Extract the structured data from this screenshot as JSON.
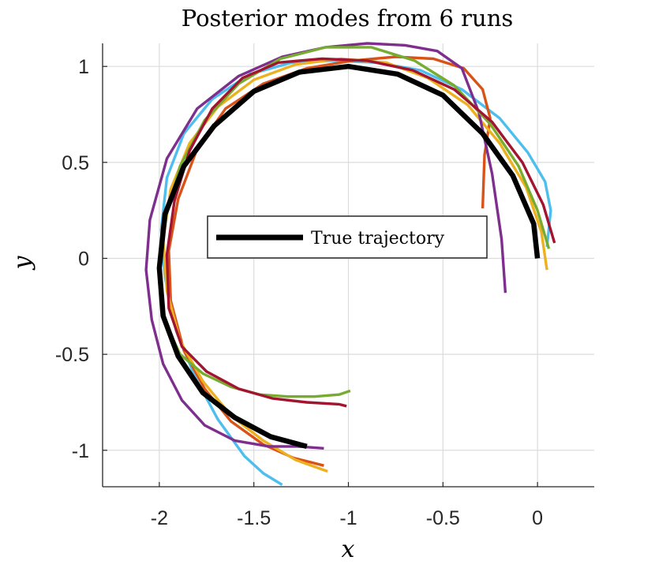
{
  "chart_data": {
    "type": "line",
    "title": "Posterior modes from 6 runs",
    "xlabel": "x",
    "ylabel": "y",
    "xlim": [
      -2.3,
      0.3
    ],
    "ylim": [
      -1.19,
      1.12
    ],
    "xticks": [
      -2,
      -1.5,
      -1,
      -0.5,
      0
    ],
    "xtick_labels": [
      "-2",
      "-1.5",
      "-1",
      "-0.5",
      "0"
    ],
    "yticks": [
      -1,
      -0.5,
      0,
      0.5,
      1
    ],
    "ytick_labels": [
      "-1",
      "-0.5",
      "0",
      "0.5",
      "1"
    ],
    "grid": true,
    "box": true,
    "legend": {
      "entries": [
        "True trajectory"
      ],
      "placement": "center"
    },
    "series": [
      {
        "name": "True trajectory",
        "color": "#000000",
        "emphasis": true,
        "x": [
          0,
          -0.02,
          -0.13,
          -0.29,
          -0.5,
          -0.74,
          -1.0,
          -1.26,
          -1.5,
          -1.71,
          -1.87,
          -1.97,
          -2.0,
          -1.98,
          -1.9,
          -1.77,
          -1.6,
          -1.41,
          -1.22
        ],
        "y": [
          0,
          0.18,
          0.43,
          0.65,
          0.85,
          0.96,
          1.0,
          0.97,
          0.87,
          0.69,
          0.48,
          0.23,
          -0.05,
          -0.3,
          -0.51,
          -0.7,
          -0.83,
          -0.93,
          -0.98
        ]
      },
      {
        "color": "#4DBEEE",
        "x": [
          0.05,
          0.07,
          0.04,
          -0.05,
          -0.2,
          -0.4,
          -0.62,
          -0.85,
          -1.08,
          -1.3,
          -1.52,
          -1.72,
          -1.87,
          -1.96,
          -1.99,
          -1.97,
          -1.91,
          -1.81,
          -1.69,
          -1.55,
          -1.45,
          -1.35
        ],
        "y": [
          0.06,
          0.25,
          0.4,
          0.55,
          0.73,
          0.88,
          0.98,
          1.02,
          1.03,
          1.02,
          0.96,
          0.83,
          0.65,
          0.42,
          0.15,
          -0.1,
          -0.38,
          -0.62,
          -0.84,
          -1.03,
          -1.12,
          -1.18
        ]
      },
      {
        "color": "#D95319",
        "x": [
          -0.29,
          -0.28,
          -0.25,
          -0.29,
          -0.39,
          -0.55,
          -0.75,
          -0.98,
          -1.22,
          -1.45,
          -1.65,
          -1.8,
          -1.9,
          -1.95,
          -1.94,
          -1.87,
          -1.76,
          -1.62,
          -1.45,
          -1.29,
          -1.13
        ],
        "y": [
          0.26,
          0.54,
          0.73,
          0.88,
          0.99,
          1.04,
          1.05,
          1.03,
          0.99,
          0.91,
          0.78,
          0.57,
          0.31,
          0.04,
          -0.22,
          -0.48,
          -0.68,
          -0.85,
          -0.97,
          -1.04,
          -1.08
        ]
      },
      {
        "color": "#EDB120",
        "x": [
          0.05,
          0.02,
          -0.06,
          -0.2,
          -0.37,
          -0.58,
          -0.8,
          -1.04,
          -1.28,
          -1.5,
          -1.69,
          -1.84,
          -1.94,
          -1.98,
          -1.96,
          -1.89,
          -1.77,
          -1.62,
          -1.45,
          -1.28,
          -1.11
        ],
        "y": [
          -0.06,
          0.14,
          0.37,
          0.6,
          0.8,
          0.94,
          1.02,
          1.04,
          1.01,
          0.93,
          0.79,
          0.6,
          0.36,
          0.1,
          -0.17,
          -0.43,
          -0.64,
          -0.82,
          -0.95,
          -1.05,
          -1.11
        ]
      },
      {
        "color": "#7E2F8E",
        "x": [
          -0.17,
          -0.19,
          -0.24,
          -0.31,
          -0.4,
          -0.53,
          -0.7,
          -0.9,
          -1.12,
          -1.35,
          -1.58,
          -1.8,
          -1.96,
          -2.05,
          -2.07,
          -2.04,
          -1.98,
          -1.88,
          -1.76,
          -1.6,
          -1.42,
          -1.27,
          -1.13
        ],
        "y": [
          -0.18,
          0.1,
          0.44,
          0.76,
          0.99,
          1.08,
          1.11,
          1.12,
          1.1,
          1.05,
          0.95,
          0.78,
          0.52,
          0.2,
          -0.06,
          -0.32,
          -0.55,
          -0.74,
          -0.87,
          -0.95,
          -0.98,
          -0.98,
          -0.99
        ]
      },
      {
        "color": "#77AC30",
        "x": [
          0.06,
          0.0,
          -0.1,
          -0.25,
          -0.44,
          -0.65,
          -0.88,
          -1.12,
          -1.36,
          -1.58,
          -1.76,
          -1.89,
          -1.97,
          -2.0,
          -1.97,
          -1.89,
          -1.77,
          -1.62,
          -1.47,
          -1.32,
          -1.18,
          -1.05,
          -0.99
        ],
        "y": [
          0.05,
          0.25,
          0.48,
          0.7,
          0.9,
          1.03,
          1.1,
          1.1,
          1.04,
          0.91,
          0.72,
          0.48,
          0.2,
          -0.08,
          -0.33,
          -0.5,
          -0.6,
          -0.67,
          -0.71,
          -0.72,
          -0.72,
          -0.71,
          -0.69
        ]
      },
      {
        "color": "#A2142F",
        "x": [
          0.09,
          0.03,
          -0.08,
          -0.24,
          -0.44,
          -0.66,
          -0.9,
          -1.14,
          -1.37,
          -1.56,
          -1.72,
          -1.84,
          -1.92,
          -1.96,
          -1.95,
          -1.88,
          -1.75,
          -1.58,
          -1.4,
          -1.22,
          -1.05,
          -1.01
        ],
        "y": [
          0.08,
          0.28,
          0.5,
          0.71,
          0.88,
          0.98,
          1.03,
          1.04,
          1.02,
          0.94,
          0.78,
          0.56,
          0.3,
          0.02,
          -0.26,
          -0.46,
          -0.59,
          -0.68,
          -0.73,
          -0.75,
          -0.76,
          -0.77
        ]
      }
    ]
  }
}
